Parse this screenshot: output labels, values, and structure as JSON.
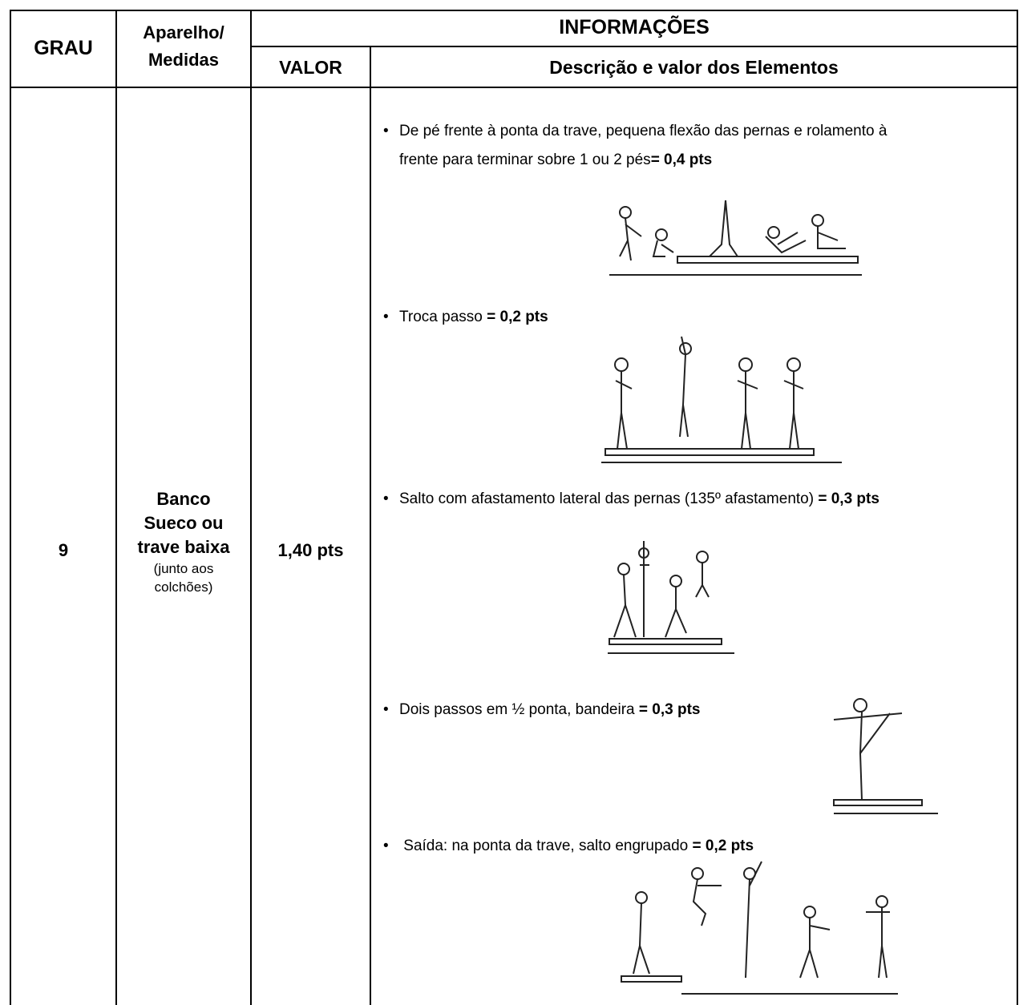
{
  "header": {
    "grau": "GRAU",
    "aparelho": [
      "Aparelho/",
      "Medidas"
    ],
    "informacoes": "INFORMAÇÕES",
    "valor": "VALOR",
    "descricao": "Descrição e valor dos Elementos"
  },
  "row": {
    "grau": "9",
    "aparelho": [
      "Banco",
      "Sueco ou",
      "trave baixa"
    ],
    "note": [
      "(junto aos",
      "colchões)"
    ],
    "valor": "1,40 pts",
    "elements": [
      {
        "text": "De pé frente à ponta da trave, pequena flexão das pernas e rolamento à frente para terminar sobre 1 ou 2 pés",
        "points": "= 0,4 pts"
      },
      {
        "text": "Troca passo",
        "points": "= 0,2 pts"
      },
      {
        "text": "Salto com afastamento lateral das pernas (135º afastamento)",
        "points": "= 0,3 pts"
      },
      {
        "text": "Dois passos em ½ ponta, bandeira",
        "points": "= 0,3 pts"
      },
      {
        "text": "Saída: na ponta da trave, salto engrupado",
        "points": "= 0,2 pts"
      }
    ]
  }
}
